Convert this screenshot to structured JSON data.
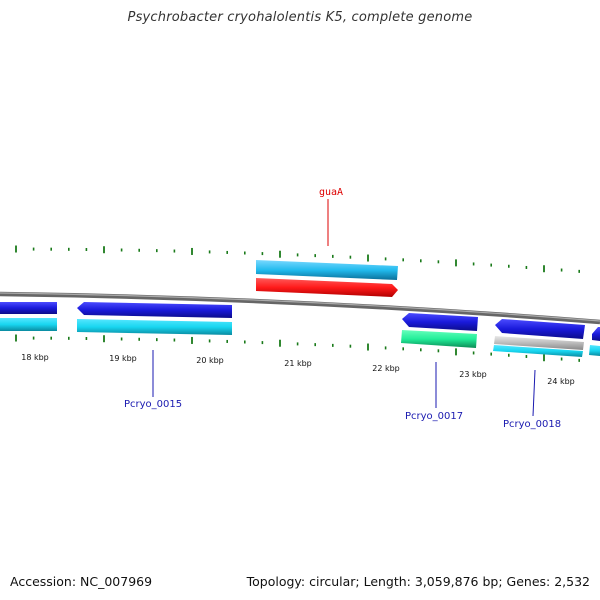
{
  "title": "Psychrobacter cryohalolentis K5, complete genome",
  "accession": "Accession: NC_007969",
  "summary": "Topology: circular; Length: 3,059,876 bp; Genes: 2,532",
  "scale_labels": [
    "18 kbp",
    "19 kbp",
    "20 kbp",
    "21 kbp",
    "22 kbp",
    "23 kbp",
    "24 kbp"
  ],
  "gene_labels": {
    "guaA": "guaA",
    "pcryo_0015": "Pcryo_0015",
    "pcryo_0017": "Pcryo_0017",
    "pcryo_0018": "Pcryo_0018"
  },
  "colors": {
    "forward_cds": "#1a1adb",
    "gene": "#22ccee",
    "highlight_cds": "#ff1a1a",
    "rna_feature": "#22ee99",
    "pseudo": "#bbbbbb",
    "backbone": "#777777",
    "ticks": "#1a7a1a",
    "label_red": "#dd0000",
    "label_blue": "#1a1ab0"
  }
}
